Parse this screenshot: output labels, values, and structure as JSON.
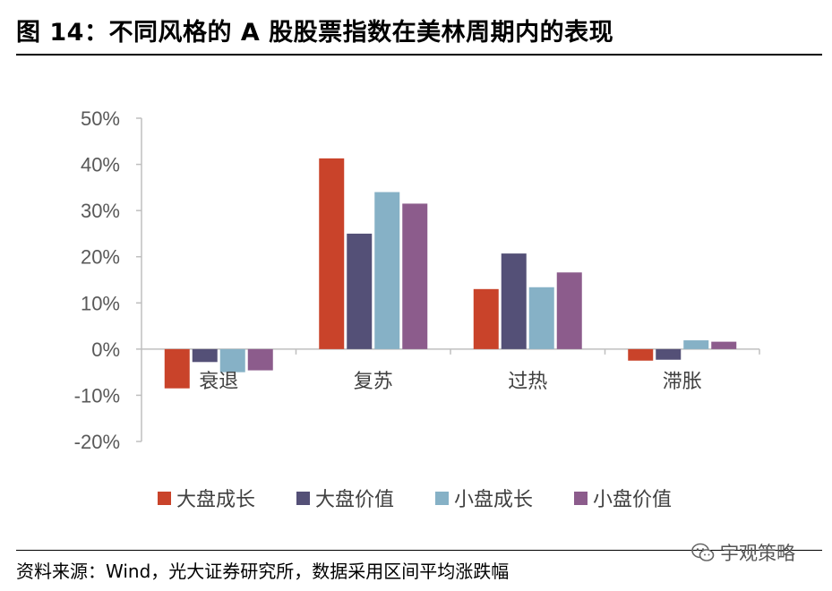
{
  "title": "图 14：不同风格的 A 股股票指数在美林周期内的表现",
  "source": "资料来源：Wind，光大证券研究所，数据采用区间平均涨跌幅",
  "watermark": "宇观策略",
  "chart_data": {
    "type": "bar",
    "categories": [
      "衰退",
      "复苏",
      "过热",
      "滞胀"
    ],
    "series": [
      {
        "name": "大盘成长",
        "color": "#C9432A",
        "values": [
          -8.5,
          41.3,
          13.0,
          -2.5
        ]
      },
      {
        "name": "大盘价值",
        "color": "#545077",
        "values": [
          -2.8,
          25.0,
          20.7,
          -2.3
        ]
      },
      {
        "name": "小盘成长",
        "color": "#86B1C6",
        "values": [
          -5.0,
          34.0,
          13.4,
          1.9
        ]
      },
      {
        "name": "小盘价值",
        "color": "#8C5C8C",
        "values": [
          -4.6,
          31.5,
          16.6,
          1.6
        ]
      }
    ],
    "ylim": [
      -20,
      50
    ],
    "yticks": [
      "50%",
      "40%",
      "30%",
      "20%",
      "10%",
      "0%",
      "-10%",
      "-20%"
    ],
    "ytick_values": [
      50,
      40,
      30,
      20,
      10,
      0,
      -10,
      -20
    ],
    "legend_position": "bottom"
  }
}
